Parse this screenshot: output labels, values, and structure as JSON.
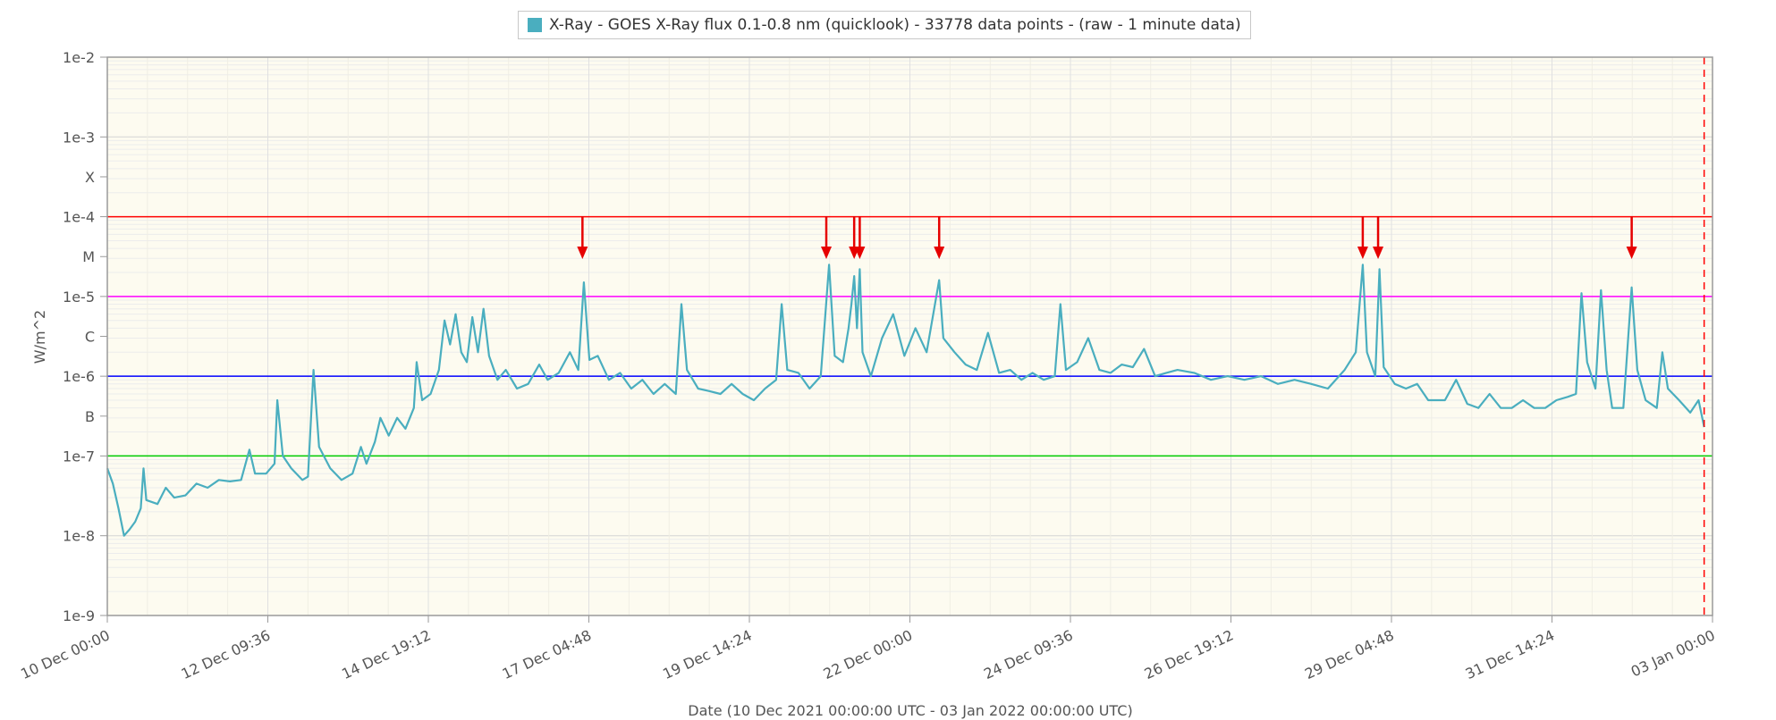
{
  "legend": {
    "label": "X-Ray - GOES X-Ray flux 0.1-0.8 nm (quicklook) - 33778 data points -  (raw - 1 minute data)"
  },
  "chart_data": {
    "type": "line",
    "title": "",
    "xlabel": "Date (10 Dec 2021 00:00:00 UTC - 03 Jan 2022 00:00:00 UTC)",
    "ylabel": "W/m^2",
    "y_scale": "log",
    "ylim": [
      1e-09,
      0.01
    ],
    "xlim": [
      "2021-12-10T00:00",
      "2022-01-03T00:00"
    ],
    "grid": true,
    "legend_position": "top-center",
    "x_tick_labels": [
      "10 Dec 00:00",
      "12 Dec 09:36",
      "14 Dec 19:12",
      "17 Dec 04:48",
      "19 Dec 14:24",
      "22 Dec 00:00",
      "24 Dec 09:36",
      "26 Dec 19:12",
      "29 Dec 04:48",
      "31 Dec 14:24",
      "03 Jan 00:00"
    ],
    "x_tick_dates": [
      "2021-12-10T00:00",
      "2021-12-12T09:36",
      "2021-12-14T19:12",
      "2021-12-17T04:48",
      "2021-12-19T14:24",
      "2021-12-22T00:00",
      "2021-12-24T09:36",
      "2021-12-26T19:12",
      "2021-12-29T04:48",
      "2021-12-31T14:24",
      "2022-01-03T00:00"
    ],
    "y_tick_labels": [
      "1e-9",
      "1e-8",
      "1e-7",
      "B",
      "1e-6",
      "C",
      "1e-5",
      "M",
      "1e-4",
      "X",
      "1e-3",
      "1e-2"
    ],
    "y_tick_values": [
      1e-09,
      1e-08,
      1e-07,
      3.16e-07,
      1e-06,
      3.16e-06,
      1e-05,
      3.16e-05,
      0.0001,
      0.000316,
      0.001,
      0.01
    ],
    "threshold_lines": [
      {
        "value": 0.0001,
        "color": "#ff0000"
      },
      {
        "value": 1e-05,
        "color": "#ff00ff"
      },
      {
        "value": 1e-06,
        "color": "#0000ff"
      },
      {
        "value": 1e-07,
        "color": "#00cc00"
      }
    ],
    "current_time_marker": {
      "x": "2022-01-02T21:00",
      "color": "#ff0000"
    },
    "flare_arrows": [
      "2021-12-17T02:30",
      "2021-12-20T18:00",
      "2021-12-21T04:00",
      "2021-12-21T06:00",
      "2021-12-22T10:30",
      "2021-12-28T18:30",
      "2021-12-29T00:00",
      "2022-01-01T19:00"
    ],
    "series": [
      {
        "name": "X-Ray - GOES X-Ray flux 0.1-0.8 nm (quicklook)",
        "color": "#4aaebf",
        "points": [
          [
            "2021-12-10T00:00",
            7e-08
          ],
          [
            "2021-12-10T02:00",
            4.5e-08
          ],
          [
            "2021-12-10T04:00",
            2.2e-08
          ],
          [
            "2021-12-10T06:00",
            1e-08
          ],
          [
            "2021-12-10T08:00",
            1.2e-08
          ],
          [
            "2021-12-10T10:00",
            1.5e-08
          ],
          [
            "2021-12-10T12:00",
            2.2e-08
          ],
          [
            "2021-12-10T13:00",
            7e-08
          ],
          [
            "2021-12-10T14:00",
            2.8e-08
          ],
          [
            "2021-12-10T18:00",
            2.5e-08
          ],
          [
            "2021-12-10T21:00",
            4e-08
          ],
          [
            "2021-12-11T00:00",
            3e-08
          ],
          [
            "2021-12-11T04:00",
            3.2e-08
          ],
          [
            "2021-12-11T08:00",
            4.5e-08
          ],
          [
            "2021-12-11T12:00",
            4e-08
          ],
          [
            "2021-12-11T16:00",
            5e-08
          ],
          [
            "2021-12-11T20:00",
            4.8e-08
          ],
          [
            "2021-12-12T00:00",
            5e-08
          ],
          [
            "2021-12-12T03:00",
            1.2e-07
          ],
          [
            "2021-12-12T05:00",
            6e-08
          ],
          [
            "2021-12-12T09:00",
            6e-08
          ],
          [
            "2021-12-12T12:00",
            8e-08
          ],
          [
            "2021-12-12T13:00",
            5e-07
          ],
          [
            "2021-12-12T15:00",
            1e-07
          ],
          [
            "2021-12-12T18:00",
            7e-08
          ],
          [
            "2021-12-12T22:00",
            5e-08
          ],
          [
            "2021-12-13T00:00",
            5.5e-08
          ],
          [
            "2021-12-13T02:00",
            1.2e-06
          ],
          [
            "2021-12-13T04:00",
            1.3e-07
          ],
          [
            "2021-12-13T08:00",
            7e-08
          ],
          [
            "2021-12-13T12:00",
            5e-08
          ],
          [
            "2021-12-13T16:00",
            6e-08
          ],
          [
            "2021-12-13T19:00",
            1.3e-07
          ],
          [
            "2021-12-13T21:00",
            8e-08
          ],
          [
            "2021-12-14T00:00",
            1.5e-07
          ],
          [
            "2021-12-14T02:00",
            3e-07
          ],
          [
            "2021-12-14T05:00",
            1.8e-07
          ],
          [
            "2021-12-14T08:00",
            3e-07
          ],
          [
            "2021-12-14T11:00",
            2.2e-07
          ],
          [
            "2021-12-14T14:00",
            4e-07
          ],
          [
            "2021-12-14T15:00",
            1.5e-06
          ],
          [
            "2021-12-14T17:00",
            5e-07
          ],
          [
            "2021-12-14T20:00",
            6e-07
          ],
          [
            "2021-12-14T23:00",
            1.2e-06
          ],
          [
            "2021-12-15T01:00",
            5e-06
          ],
          [
            "2021-12-15T03:00",
            2.5e-06
          ],
          [
            "2021-12-15T05:00",
            6e-06
          ],
          [
            "2021-12-15T07:00",
            2e-06
          ],
          [
            "2021-12-15T09:00",
            1.5e-06
          ],
          [
            "2021-12-15T11:00",
            5.5e-06
          ],
          [
            "2021-12-15T13:00",
            2e-06
          ],
          [
            "2021-12-15T15:00",
            7e-06
          ],
          [
            "2021-12-15T17:00",
            1.8e-06
          ],
          [
            "2021-12-15T20:00",
            9e-07
          ],
          [
            "2021-12-15T23:00",
            1.2e-06
          ],
          [
            "2021-12-16T03:00",
            7e-07
          ],
          [
            "2021-12-16T07:00",
            8e-07
          ],
          [
            "2021-12-16T11:00",
            1.4e-06
          ],
          [
            "2021-12-16T14:00",
            9e-07
          ],
          [
            "2021-12-16T18:00",
            1.1e-06
          ],
          [
            "2021-12-16T22:00",
            2e-06
          ],
          [
            "2021-12-17T01:00",
            1.2e-06
          ],
          [
            "2021-12-17T03:00",
            1.5e-05
          ],
          [
            "2021-12-17T05:00",
            1.6e-06
          ],
          [
            "2021-12-17T08:00",
            1.8e-06
          ],
          [
            "2021-12-17T12:00",
            9e-07
          ],
          [
            "2021-12-17T16:00",
            1.1e-06
          ],
          [
            "2021-12-17T20:00",
            7e-07
          ],
          [
            "2021-12-18T00:00",
            9e-07
          ],
          [
            "2021-12-18T04:00",
            6e-07
          ],
          [
            "2021-12-18T08:00",
            8e-07
          ],
          [
            "2021-12-18T12:00",
            6e-07
          ],
          [
            "2021-12-18T14:00",
            8e-06
          ],
          [
            "2021-12-18T16:00",
            1.2e-06
          ],
          [
            "2021-12-18T20:00",
            7e-07
          ],
          [
            "2021-12-19T00:00",
            6.5e-07
          ],
          [
            "2021-12-19T04:00",
            6e-07
          ],
          [
            "2021-12-19T08:00",
            8e-07
          ],
          [
            "2021-12-19T12:00",
            6e-07
          ],
          [
            "2021-12-19T16:00",
            5e-07
          ],
          [
            "2021-12-19T20:00",
            7e-07
          ],
          [
            "2021-12-20T00:00",
            9e-07
          ],
          [
            "2021-12-20T02:00",
            8e-06
          ],
          [
            "2021-12-20T04:00",
            1.2e-06
          ],
          [
            "2021-12-20T08:00",
            1.1e-06
          ],
          [
            "2021-12-20T12:00",
            7e-07
          ],
          [
            "2021-12-20T16:00",
            1e-06
          ],
          [
            "2021-12-20T19:00",
            2.5e-05
          ],
          [
            "2021-12-20T21:00",
            1.8e-06
          ],
          [
            "2021-12-21T00:00",
            1.5e-06
          ],
          [
            "2021-12-21T02:00",
            4e-06
          ],
          [
            "2021-12-21T03:00",
            8e-06
          ],
          [
            "2021-12-21T04:00",
            1.8e-05
          ],
          [
            "2021-12-21T05:00",
            4e-06
          ],
          [
            "2021-12-21T06:00",
            2.2e-05
          ],
          [
            "2021-12-21T07:00",
            2e-06
          ],
          [
            "2021-12-21T10:00",
            1e-06
          ],
          [
            "2021-12-21T14:00",
            3e-06
          ],
          [
            "2021-12-21T18:00",
            6e-06
          ],
          [
            "2021-12-21T22:00",
            1.8e-06
          ],
          [
            "2021-12-22T02:00",
            4e-06
          ],
          [
            "2021-12-22T06:00",
            2e-06
          ],
          [
            "2021-12-22T10:30",
            1.6e-05
          ],
          [
            "2021-12-22T12:00",
            3e-06
          ],
          [
            "2021-12-22T16:00",
            2e-06
          ],
          [
            "2021-12-22T20:00",
            1.4e-06
          ],
          [
            "2021-12-23T00:00",
            1.2e-06
          ],
          [
            "2021-12-23T04:00",
            3.5e-06
          ],
          [
            "2021-12-23T08:00",
            1.1e-06
          ],
          [
            "2021-12-23T12:00",
            1.2e-06
          ],
          [
            "2021-12-23T16:00",
            9e-07
          ],
          [
            "2021-12-23T20:00",
            1.1e-06
          ],
          [
            "2021-12-24T00:00",
            9e-07
          ],
          [
            "2021-12-24T04:00",
            1e-06
          ],
          [
            "2021-12-24T06:00",
            8e-06
          ],
          [
            "2021-12-24T08:00",
            1.2e-06
          ],
          [
            "2021-12-24T12:00",
            1.5e-06
          ],
          [
            "2021-12-24T16:00",
            3e-06
          ],
          [
            "2021-12-24T20:00",
            1.2e-06
          ],
          [
            "2021-12-25T00:00",
            1.1e-06
          ],
          [
            "2021-12-25T04:00",
            1.4e-06
          ],
          [
            "2021-12-25T08:00",
            1.3e-06
          ],
          [
            "2021-12-25T12:00",
            2.2e-06
          ],
          [
            "2021-12-25T16:00",
            1e-06
          ],
          [
            "2021-12-25T20:00",
            1.1e-06
          ],
          [
            "2021-12-26T00:00",
            1.2e-06
          ],
          [
            "2021-12-26T06:00",
            1.1e-06
          ],
          [
            "2021-12-26T12:00",
            9e-07
          ],
          [
            "2021-12-26T18:00",
            1e-06
          ],
          [
            "2021-12-27T00:00",
            9e-07
          ],
          [
            "2021-12-27T06:00",
            1e-06
          ],
          [
            "2021-12-27T12:00",
            8e-07
          ],
          [
            "2021-12-27T18:00",
            9e-07
          ],
          [
            "2021-12-28T00:00",
            8e-07
          ],
          [
            "2021-12-28T06:00",
            7e-07
          ],
          [
            "2021-12-28T12:00",
            1.2e-06
          ],
          [
            "2021-12-28T16:00",
            2e-06
          ],
          [
            "2021-12-28T18:30",
            2.5e-05
          ],
          [
            "2021-12-28T20:00",
            2e-06
          ],
          [
            "2021-12-28T23:00",
            1e-06
          ],
          [
            "2021-12-29T00:30",
            2.2e-05
          ],
          [
            "2021-12-29T02:00",
            1.3e-06
          ],
          [
            "2021-12-29T06:00",
            8e-07
          ],
          [
            "2021-12-29T10:00",
            7e-07
          ],
          [
            "2021-12-29T14:00",
            8e-07
          ],
          [
            "2021-12-29T18:00",
            5e-07
          ],
          [
            "2021-12-30T00:00",
            5e-07
          ],
          [
            "2021-12-30T04:00",
            9e-07
          ],
          [
            "2021-12-30T08:00",
            4.5e-07
          ],
          [
            "2021-12-30T12:00",
            4e-07
          ],
          [
            "2021-12-30T16:00",
            6e-07
          ],
          [
            "2021-12-30T20:00",
            4e-07
          ],
          [
            "2021-12-31T00:00",
            4e-07
          ],
          [
            "2021-12-31T04:00",
            5e-07
          ],
          [
            "2021-12-31T08:00",
            4e-07
          ],
          [
            "2021-12-31T12:00",
            4e-07
          ],
          [
            "2021-12-31T16:00",
            5e-07
          ],
          [
            "2021-12-31T20:00",
            5.5e-07
          ],
          [
            "2021-12-31T23:00",
            6e-07
          ],
          [
            "2022-01-01T01:00",
            1.1e-05
          ],
          [
            "2022-01-01T03:00",
            1.5e-06
          ],
          [
            "2022-01-01T06:00",
            7e-07
          ],
          [
            "2022-01-01T08:00",
            1.2e-05
          ],
          [
            "2022-01-01T10:00",
            1.2e-06
          ],
          [
            "2022-01-01T12:00",
            4e-07
          ],
          [
            "2022-01-01T16:00",
            4e-07
          ],
          [
            "2022-01-01T19:00",
            1.3e-05
          ],
          [
            "2022-01-01T21:00",
            1.2e-06
          ],
          [
            "2022-01-02T00:00",
            5e-07
          ],
          [
            "2022-01-02T04:00",
            4e-07
          ],
          [
            "2022-01-02T06:00",
            2e-06
          ],
          [
            "2022-01-02T08:00",
            7e-07
          ],
          [
            "2022-01-02T12:00",
            5e-07
          ],
          [
            "2022-01-02T16:00",
            3.5e-07
          ],
          [
            "2022-01-02T19:00",
            5e-07
          ],
          [
            "2022-01-02T21:00",
            2.3e-07
          ]
        ]
      }
    ]
  }
}
